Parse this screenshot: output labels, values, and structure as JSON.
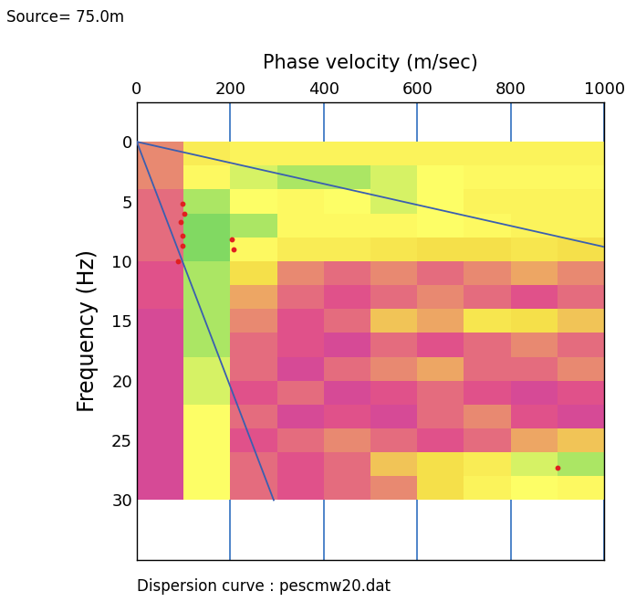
{
  "chart_data": {
    "type": "heatmap",
    "title": "Source= 75.0m",
    "x_label": "Phase velocity (m/sec)",
    "y_label": "Frequency (Hz)",
    "annotation": "Dispersion curve : pescmw20.dat",
    "xlim": [
      0,
      1000
    ],
    "ylim": [
      35,
      -3.3
    ],
    "xticks": [
      0,
      200,
      400,
      600,
      800,
      1000
    ],
    "yticks": [
      0,
      5,
      10,
      15,
      20,
      25,
      30
    ],
    "grid": true,
    "x_bins": [
      0,
      100,
      200,
      300,
      400,
      500,
      600,
      700,
      800,
      900,
      1000
    ],
    "y_bins": [
      0,
      2,
      4,
      6,
      8,
      10,
      12,
      14,
      16,
      18,
      20,
      22,
      24,
      26,
      28,
      30
    ],
    "cells": [
      [
        0.35,
        0.6,
        0.65,
        0.65,
        0.65,
        0.65,
        0.65,
        0.65,
        0.65,
        0.65
      ],
      [
        0.35,
        0.7,
        0.8,
        0.85,
        0.85,
        0.8,
        0.75,
        0.7,
        0.7,
        0.7
      ],
      [
        0.3,
        0.85,
        0.75,
        0.7,
        0.75,
        0.8,
        0.75,
        0.65,
        0.65,
        0.65
      ],
      [
        0.3,
        0.9,
        0.85,
        0.7,
        0.7,
        0.7,
        0.75,
        0.7,
        0.65,
        0.65
      ],
      [
        0.3,
        0.9,
        0.7,
        0.6,
        0.6,
        0.55,
        0.5,
        0.5,
        0.55,
        0.5
      ],
      [
        0.25,
        0.85,
        0.5,
        0.35,
        0.3,
        0.35,
        0.3,
        0.35,
        0.4,
        0.35
      ],
      [
        0.25,
        0.85,
        0.4,
        0.3,
        0.25,
        0.3,
        0.35,
        0.3,
        0.25,
        0.3
      ],
      [
        0.2,
        0.85,
        0.35,
        0.25,
        0.3,
        0.45,
        0.4,
        0.55,
        0.5,
        0.45
      ],
      [
        0.2,
        0.85,
        0.3,
        0.25,
        0.2,
        0.3,
        0.25,
        0.3,
        0.35,
        0.3
      ],
      [
        0.2,
        0.8,
        0.3,
        0.2,
        0.3,
        0.35,
        0.4,
        0.3,
        0.3,
        0.35
      ],
      [
        0.2,
        0.8,
        0.25,
        0.3,
        0.2,
        0.25,
        0.3,
        0.25,
        0.2,
        0.25
      ],
      [
        0.2,
        0.75,
        0.3,
        0.2,
        0.25,
        0.2,
        0.3,
        0.35,
        0.25,
        0.2
      ],
      [
        0.2,
        0.75,
        0.25,
        0.3,
        0.35,
        0.3,
        0.25,
        0.3,
        0.4,
        0.45
      ],
      [
        0.2,
        0.75,
        0.3,
        0.25,
        0.3,
        0.45,
        0.5,
        0.6,
        0.8,
        0.85
      ],
      [
        0.2,
        0.75,
        0.3,
        0.25,
        0.3,
        0.35,
        0.5,
        0.65,
        0.75,
        0.7
      ]
    ],
    "lines": [
      {
        "x": [
          0,
          1000
        ],
        "y": [
          0,
          8.8
        ],
        "color": "#3a5fb0"
      },
      {
        "x": [
          0,
          293
        ],
        "y": [
          0,
          30
        ],
        "color": "#3a5fb0"
      }
    ],
    "picks": {
      "x": [
        98,
        101,
        94,
        98,
        98,
        203,
        208,
        89,
        900
      ],
      "y": [
        5.2,
        6.0,
        6.7,
        7.9,
        8.7,
        8.2,
        9.0,
        10.0,
        27.3
      ],
      "color": "#e02020"
    }
  }
}
